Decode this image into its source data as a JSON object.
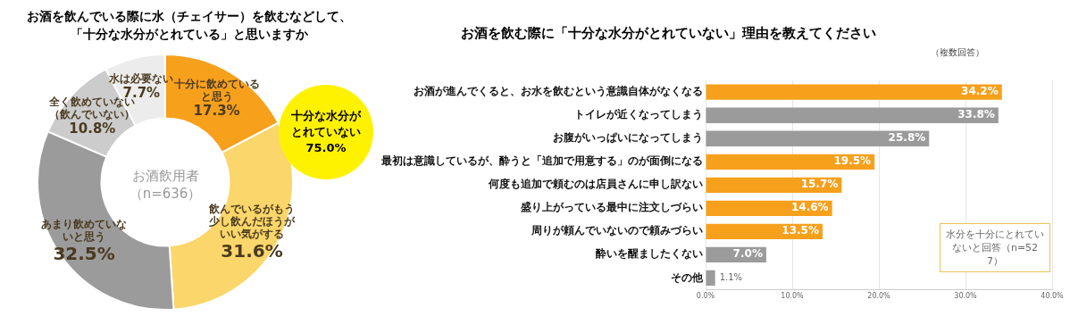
{
  "chart_data": [
    {
      "type": "donut",
      "title": "お酒を飲んでいる際に水（チェイサー）を飲むなどして、「十分な水分がとれている」と思いますか",
      "categories": [
        "十分に飲めていると思う",
        "飲んでいるがもう少し飲んだほうがいい気がする",
        "あまり飲めていないと思う",
        "全く飲めていない（飲んでいない）",
        "水は必要ない"
      ],
      "values": [
        17.3,
        31.6,
        32.5,
        10.8,
        7.7
      ],
      "colors": [
        "#f7a01c",
        "#fbd66a",
        "#9b9b9b",
        "#cccccc",
        "#ececec"
      ],
      "value_labels": [
        "17.3%",
        "31.6%",
        "32.5%",
        "10.8%",
        "7.7%"
      ],
      "legend": false,
      "annotations": [
        "お酒飲用者",
        "（n=636）",
        "十分な水分がとれていない75.0%"
      ]
    },
    {
      "type": "bar",
      "orientation": "horizontal",
      "title": "お酒を飲む際に「十分な水分がとれていない」理由を教えてください",
      "categories": [
        "お酒が進んでくると、お水を飲むという意識自体がなくなる",
        "トイレが近くなってしまう",
        "お腹がいっぱいになってしまう",
        "最初は意識しているが、酔うと「追加で用意する」のが面倒になる",
        "何度も追加で頼むのは店員さんに申し訳ない",
        "盛り上がっている最中に注文しづらい",
        "周りが頼んでいないので頼みづらい",
        "酔いを醒ましたくない",
        "その他"
      ],
      "values": [
        34.2,
        33.8,
        25.8,
        19.5,
        15.7,
        14.6,
        13.5,
        7.0,
        1.1
      ],
      "colors": [
        "#f7a01c",
        "#9b9b9b",
        "#9b9b9b",
        "#f7a01c",
        "#f7a01c",
        "#f7a01c",
        "#f7a01c",
        "#9b9b9b",
        "#9b9b9b"
      ],
      "value_labels": [
        "34.2%",
        "33.8%",
        "25.8%",
        "19.5%",
        "15.7%",
        "14.6%",
        "13.5%",
        "7.0%",
        "1.1%"
      ],
      "xlim": [
        0,
        40
      ],
      "xticks": [
        {
          "value": 0,
          "label": "0.0%"
        },
        {
          "value": 10,
          "label": "10.0%"
        },
        {
          "value": 20,
          "label": "20.0%"
        },
        {
          "value": 30,
          "label": "30.0%"
        },
        {
          "value": 40,
          "label": "40.0%"
        }
      ],
      "grid": "x",
      "legend": false,
      "annotations": [
        "（複数回答）",
        "水分を十分にとれていないと回答（n=527）"
      ]
    }
  ]
}
